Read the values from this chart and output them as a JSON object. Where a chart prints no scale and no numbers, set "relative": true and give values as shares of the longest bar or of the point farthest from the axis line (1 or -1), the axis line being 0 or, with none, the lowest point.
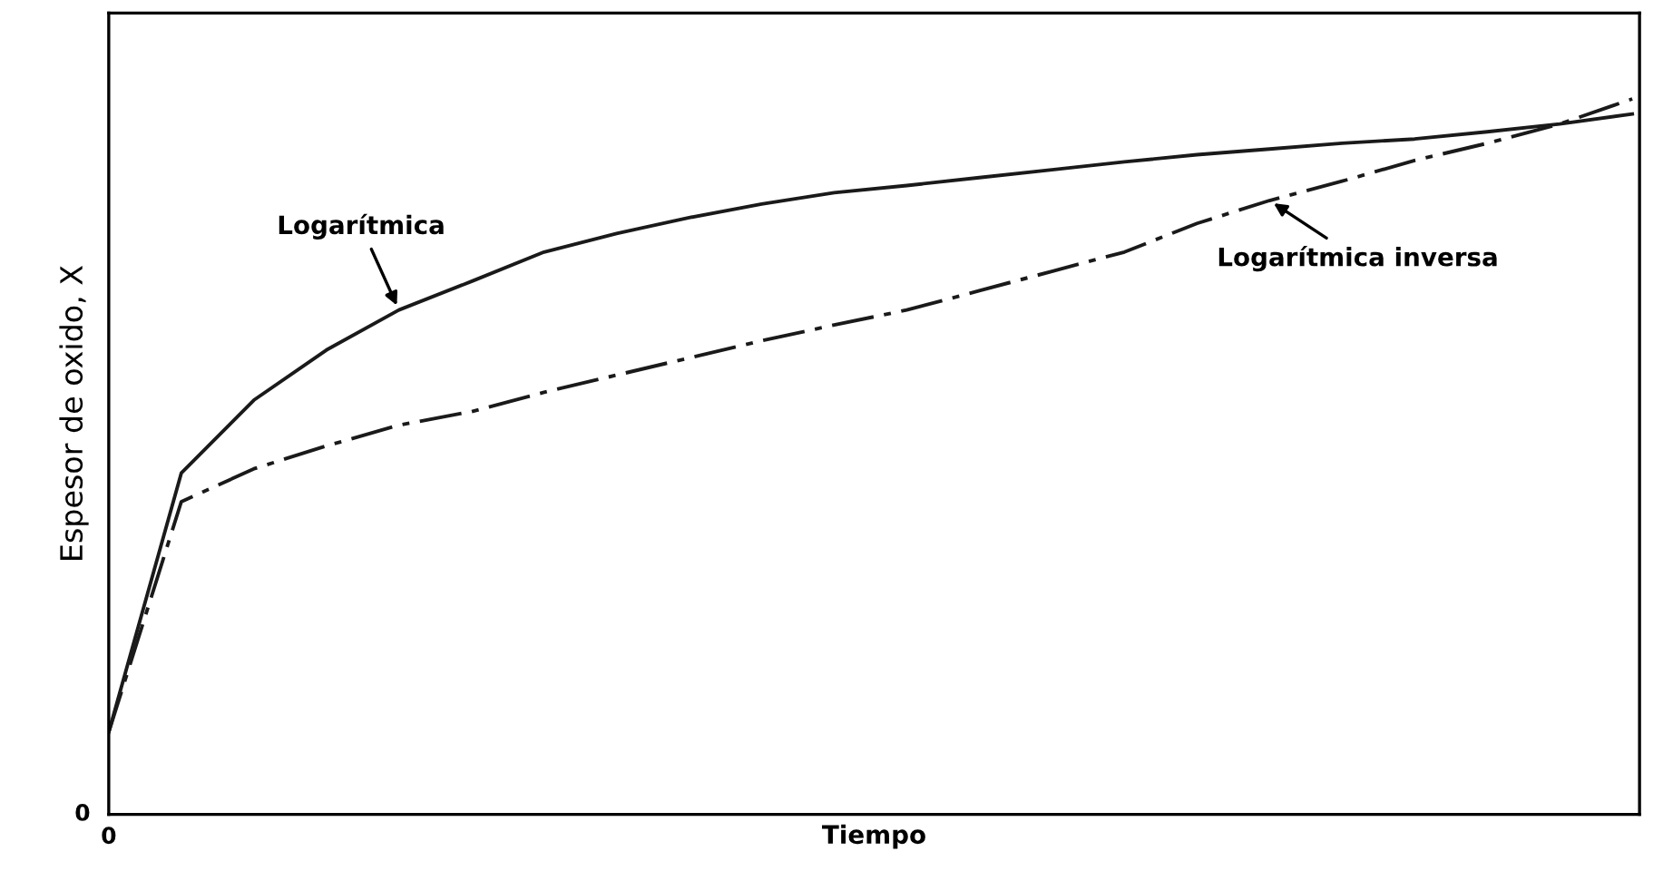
{
  "chart_data": {
    "type": "line",
    "relative": true,
    "xlabel": "Tiempo",
    "ylabel": "Espesor de oxido, X",
    "categories": [
      null,
      null,
      null,
      null,
      null,
      null,
      null,
      null,
      null,
      null,
      null,
      null,
      null,
      null,
      null,
      null,
      null,
      null,
      null,
      null,
      null,
      null
    ],
    "series": [
      {
        "name": "Logarítmica",
        "color": "#1a1a1a",
        "line_style": "solid",
        "values": [
          0.115,
          0.477,
          0.579,
          0.649,
          0.705,
          0.745,
          0.786,
          0.812,
          0.834,
          0.853,
          0.869,
          0.879,
          0.89,
          0.901,
          0.912,
          0.922,
          0.93,
          0.938,
          0.944,
          0.954,
          0.965,
          0.979
        ]
      },
      {
        "name": "Logarítmica inversa",
        "color": "#1a1a1a",
        "line_style": "dashed",
        "values": [
          0.115,
          0.437,
          0.483,
          0.515,
          0.544,
          0.563,
          0.59,
          0.614,
          0.638,
          0.662,
          0.684,
          0.705,
          0.732,
          0.759,
          0.786,
          0.826,
          0.858,
          0.885,
          0.914,
          0.938,
          0.965,
          1.0
        ]
      }
    ],
    "annotations": [
      "0",
      "0"
    ],
    "legend": false,
    "marker": "none"
  }
}
